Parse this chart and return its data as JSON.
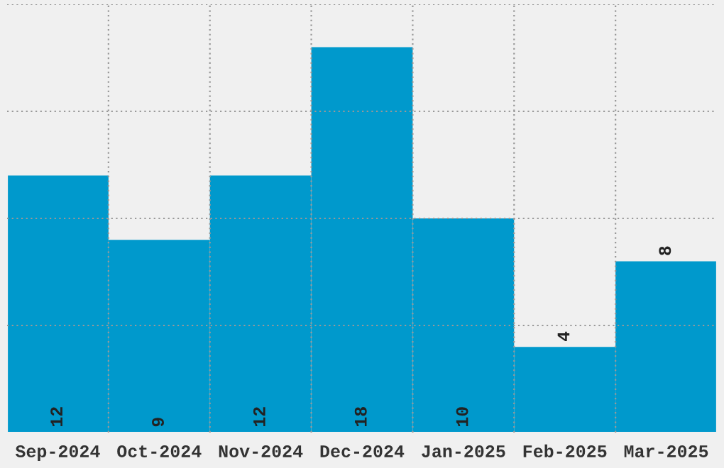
{
  "chart_data": {
    "type": "bar",
    "categories": [
      "Sep-2024",
      "Oct-2024",
      "Nov-2024",
      "Dec-2024",
      "Jan-2025",
      "Feb-2025",
      "Mar-2025"
    ],
    "values": [
      12,
      9,
      12,
      18,
      10,
      4,
      8
    ],
    "color": "#0099cc",
    "ylim": [
      0,
      20
    ],
    "yticks": [
      {
        "value": 5,
        "label": null
      },
      {
        "value": 10,
        "label": null
      },
      {
        "value": 15,
        "label": null
      },
      {
        "value": 20,
        "label": null
      }
    ],
    "tick_labels": "x",
    "grid": true,
    "data_labels": true
  }
}
